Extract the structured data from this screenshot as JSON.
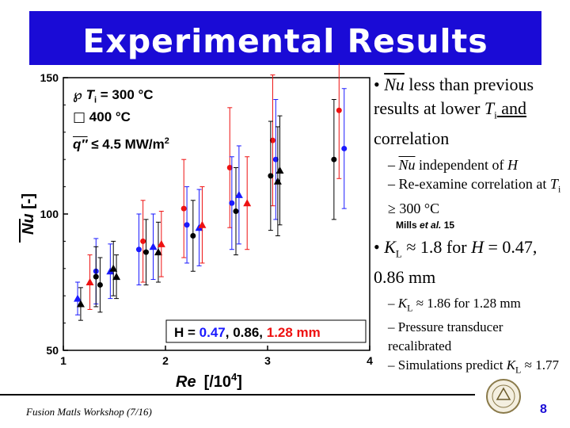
{
  "slide": {
    "title": "Experimental Results",
    "footer": "Fusion Matls Workshop (7/16)",
    "page_number": "8"
  },
  "legend": {
    "symbol_circle": "℘",
    "ti_label": "T",
    "ti_sub": "i",
    "ti_value": " = 300 °C",
    "square_symbol": "□",
    "ti_value_2": "400 °C",
    "flux_label": "q″",
    "flux_value": " ≤ 4.5 MW/m",
    "flux_exp": "2"
  },
  "chart_data": {
    "type": "scatter",
    "x_axis": {
      "label_main": "Re",
      "label_unit": "[/10",
      "label_exp": "4",
      "label_close": "]",
      "range": [
        1,
        4
      ],
      "ticks": [
        "1",
        "2",
        "3",
        "4"
      ]
    },
    "y_axis": {
      "label_main": "Nu",
      "label_unit": " [-]",
      "range": [
        50,
        150
      ],
      "ticks": [
        "50",
        "100",
        "150"
      ]
    },
    "annotation": {
      "prefix": "H = ",
      "v1": "0.47",
      "sep1": ", ",
      "v2": "0.86",
      "sep2": ", ",
      "v3": "1.28 mm"
    },
    "series_colors": {
      "blue": "#1a1aff",
      "black": "#000000",
      "red": "#ee1111"
    },
    "points": [
      {
        "x": 1.14,
        "y": 69,
        "err": 6,
        "color": "blue",
        "shape": "triangle"
      },
      {
        "x": 1.17,
        "y": 67,
        "err": 6,
        "color": "black",
        "shape": "triangle"
      },
      {
        "x": 1.26,
        "y": 75,
        "err": 10,
        "color": "red",
        "shape": "triangle"
      },
      {
        "x": 1.32,
        "y": 79,
        "err": 12,
        "color": "blue",
        "shape": "circle"
      },
      {
        "x": 1.32,
        "y": 77,
        "err": 11,
        "color": "black",
        "shape": "circle"
      },
      {
        "x": 1.36,
        "y": 74,
        "err": 10,
        "color": "black",
        "shape": "circle"
      },
      {
        "x": 1.46,
        "y": 79,
        "err": 10,
        "color": "blue",
        "shape": "triangle"
      },
      {
        "x": 1.49,
        "y": 80,
        "err": 10,
        "color": "black",
        "shape": "triangle"
      },
      {
        "x": 1.52,
        "y": 77,
        "err": 8,
        "color": "black",
        "shape": "triangle"
      },
      {
        "x": 1.78,
        "y": 90,
        "err": 15,
        "color": "red",
        "shape": "circle"
      },
      {
        "x": 1.74,
        "y": 87,
        "err": 13,
        "color": "blue",
        "shape": "circle"
      },
      {
        "x": 1.81,
        "y": 86,
        "err": 12,
        "color": "black",
        "shape": "circle"
      },
      {
        "x": 1.88,
        "y": 88,
        "err": 12,
        "color": "blue",
        "shape": "triangle"
      },
      {
        "x": 1.93,
        "y": 86,
        "err": 11,
        "color": "black",
        "shape": "triangle"
      },
      {
        "x": 1.96,
        "y": 89,
        "err": 12,
        "color": "red",
        "shape": "triangle"
      },
      {
        "x": 2.18,
        "y": 102,
        "err": 18,
        "color": "red",
        "shape": "circle"
      },
      {
        "x": 2.21,
        "y": 96,
        "err": 14,
        "color": "blue",
        "shape": "circle"
      },
      {
        "x": 2.27,
        "y": 92,
        "err": 13,
        "color": "black",
        "shape": "circle"
      },
      {
        "x": 2.33,
        "y": 95,
        "err": 14,
        "color": "blue",
        "shape": "triangle"
      },
      {
        "x": 2.36,
        "y": 96,
        "err": 14,
        "color": "red",
        "shape": "triangle"
      },
      {
        "x": 2.63,
        "y": 117,
        "err": 22,
        "color": "red",
        "shape": "circle"
      },
      {
        "x": 2.65,
        "y": 104,
        "err": 17,
        "color": "blue",
        "shape": "circle"
      },
      {
        "x": 2.69,
        "y": 101,
        "err": 16,
        "color": "black",
        "shape": "circle"
      },
      {
        "x": 2.72,
        "y": 107,
        "err": 18,
        "color": "blue",
        "shape": "triangle"
      },
      {
        "x": 2.8,
        "y": 104,
        "err": 17,
        "color": "red",
        "shape": "triangle"
      },
      {
        "x": 3.05,
        "y": 127,
        "err": 24,
        "color": "red",
        "shape": "circle"
      },
      {
        "x": 3.03,
        "y": 114,
        "err": 20,
        "color": "black",
        "shape": "circle"
      },
      {
        "x": 3.08,
        "y": 120,
        "err": 22,
        "color": "blue",
        "shape": "circle"
      },
      {
        "x": 3.1,
        "y": 112,
        "err": 20,
        "color": "black",
        "shape": "triangle"
      },
      {
        "x": 3.12,
        "y": 116,
        "err": 20,
        "color": "black",
        "shape": "triangle"
      },
      {
        "x": 3.7,
        "y": 138,
        "err": 25,
        "color": "red",
        "shape": "circle"
      },
      {
        "x": 3.65,
        "y": 120,
        "err": 22,
        "color": "black",
        "shape": "circle"
      },
      {
        "x": 3.75,
        "y": 124,
        "err": 22,
        "color": "blue",
        "shape": "circle"
      }
    ]
  },
  "bullets": {
    "b1_bullet": "•",
    "b1_nu": "Nu",
    "b1_text1": " less than previous results at lower ",
    "b1_ti": "T",
    "b1_ti_sub": "i",
    "b1_and": " and",
    "b1_text2": "correlation",
    "s1_dash": "– ",
    "s1_nu": "Nu",
    "s1_text": " independent of ",
    "s1_h": "H",
    "s2_dash": "– ",
    "s2_text": "Re-examine correlation at ",
    "s2_ti": "T",
    "s2_ti_sub": "i",
    "s2_text2": " ≥ 300 °C",
    "ref_text": "Mills ",
    "ref_italic": "et al.",
    "ref_year": " 15",
    "b2_bullet": "•",
    "b2_k": "K",
    "b2_k_sub": "L",
    "b2_text": " ≈ 1.8 for ",
    "b2_h": "H",
    "b2_text2": " = 0.47, 0.86 mm",
    "s3_dash": "– ",
    "s3_k": "K",
    "s3_k_sub": "L",
    "s3_text": " ≈ 1.86 for 1.28 mm",
    "s4_dash": "– ",
    "s4_text": "Pressure transducer recalibrated",
    "s5_dash": "– ",
    "s5_text": "Simulations predict ",
    "s5_k": "K",
    "s5_k_sub": "L",
    "s5_text2": " ≈ 1.77"
  }
}
